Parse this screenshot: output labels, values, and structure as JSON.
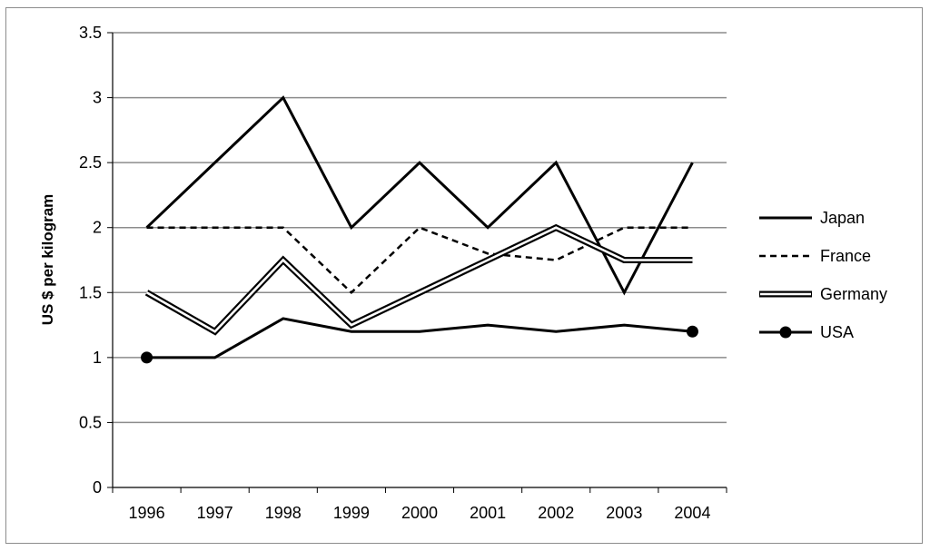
{
  "chart_data": {
    "type": "line",
    "title": "",
    "xlabel": "",
    "ylabel": "US $ per kilogram",
    "x": [
      "1996",
      "1997",
      "1998",
      "1999",
      "2000",
      "2001",
      "2002",
      "2003",
      "2004"
    ],
    "ylim": [
      0,
      3.5
    ],
    "yticks": [
      "0",
      "0.5",
      "1",
      "1.5",
      "2",
      "2.5",
      "3",
      "3.5"
    ],
    "grid": true,
    "legend_position": "right",
    "series": [
      {
        "name": "Japan",
        "style": "solid",
        "color": "#000000",
        "values": [
          2,
          2.5,
          3,
          2,
          2.5,
          2,
          2.5,
          1.5,
          2.5
        ]
      },
      {
        "name": "France",
        "style": "dashed",
        "color": "#000000",
        "values": [
          2,
          2,
          2,
          1.5,
          2,
          1.8,
          1.75,
          2,
          2
        ]
      },
      {
        "name": "Germany",
        "style": "double",
        "color": "#000000",
        "values": [
          1.5,
          1.2,
          1.75,
          1.25,
          1.5,
          1.75,
          2,
          1.75,
          1.75
        ]
      },
      {
        "name": "USA",
        "style": "solid-dots",
        "color": "#000000",
        "values": [
          1,
          1,
          1.3,
          1.2,
          1.2,
          1.25,
          1.2,
          1.25,
          1.2
        ]
      }
    ]
  }
}
